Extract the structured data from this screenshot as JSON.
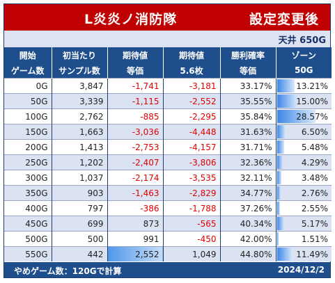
{
  "title": {
    "left": "L炎炎ノ消防隊",
    "right": "設定変更後"
  },
  "ceiling": "天井 650G",
  "headers": [
    [
      "開始",
      "ゲーム数"
    ],
    [
      "初当たり",
      "サンプル数"
    ],
    [
      "期待値",
      "等価"
    ],
    [
      "期待値",
      "5.6枚"
    ],
    [
      "勝利確率",
      "等価"
    ],
    [
      "ゾーン",
      "50G"
    ]
  ],
  "rows": [
    {
      "start": "0G",
      "samples": "3,847",
      "ev_equal": "-1,741",
      "ev_56": "-3,181",
      "win": "33.17%",
      "zone": "13.21%",
      "zone_pct": 13.21
    },
    {
      "start": "50G",
      "samples": "3,339",
      "ev_equal": "-1,115",
      "ev_56": "-2,552",
      "win": "35.55%",
      "zone": "15.00%",
      "zone_pct": 15.0
    },
    {
      "start": "100G",
      "samples": "2,762",
      "ev_equal": "-885",
      "ev_56": "-2,295",
      "win": "35.84%",
      "zone": "28.57%",
      "zone_pct": 28.57
    },
    {
      "start": "150G",
      "samples": "1,663",
      "ev_equal": "-3,036",
      "ev_56": "-4,448",
      "win": "31.63%",
      "zone": "6.50%",
      "zone_pct": 6.5
    },
    {
      "start": "200G",
      "samples": "1,413",
      "ev_equal": "-2,753",
      "ev_56": "-4,157",
      "win": "31.71%",
      "zone": "5.48%",
      "zone_pct": 5.48
    },
    {
      "start": "250G",
      "samples": "1,202",
      "ev_equal": "-2,407",
      "ev_56": "-3,806",
      "win": "32.36%",
      "zone": "4.29%",
      "zone_pct": 4.29
    },
    {
      "start": "300G",
      "samples": "1,037",
      "ev_equal": "-2,174",
      "ev_56": "-3,535",
      "win": "32.11%",
      "zone": "3.48%",
      "zone_pct": 3.48
    },
    {
      "start": "350G",
      "samples": "903",
      "ev_equal": "-1,463",
      "ev_56": "-2,829",
      "win": "34.77%",
      "zone": "2.76%",
      "zone_pct": 2.76
    },
    {
      "start": "400G",
      "samples": "797",
      "ev_equal": "-386",
      "ev_56": "-1,788",
      "win": "37.26%",
      "zone": "2.55%",
      "zone_pct": 2.55
    },
    {
      "start": "450G",
      "samples": "699",
      "ev_equal": "873",
      "ev_56": "-565",
      "win": "40.34%",
      "zone": "5.17%",
      "zone_pct": 5.17
    },
    {
      "start": "500G",
      "samples": "500",
      "ev_equal": "991",
      "ev_56": "-450",
      "win": "42.00%",
      "zone": "1.51%",
      "zone_pct": 1.51
    },
    {
      "start": "550G",
      "samples": "442",
      "ev_equal": "2,552",
      "ev_56": "1,049",
      "win": "44.80%",
      "zone": "11.49%",
      "zone_pct": 11.49
    }
  ],
  "highlight_cell": {
    "row": 11,
    "col": "ev_equal"
  },
  "footer": {
    "left": "やめゲーム数：120Gで計算",
    "right": "2024/12/2"
  },
  "colors": {
    "title_bg": "#c00000",
    "header_bg": "#1f4e8c",
    "negative": "#e00000",
    "row_alt": "#dbe3f3",
    "bar": "#3d86e6"
  }
}
